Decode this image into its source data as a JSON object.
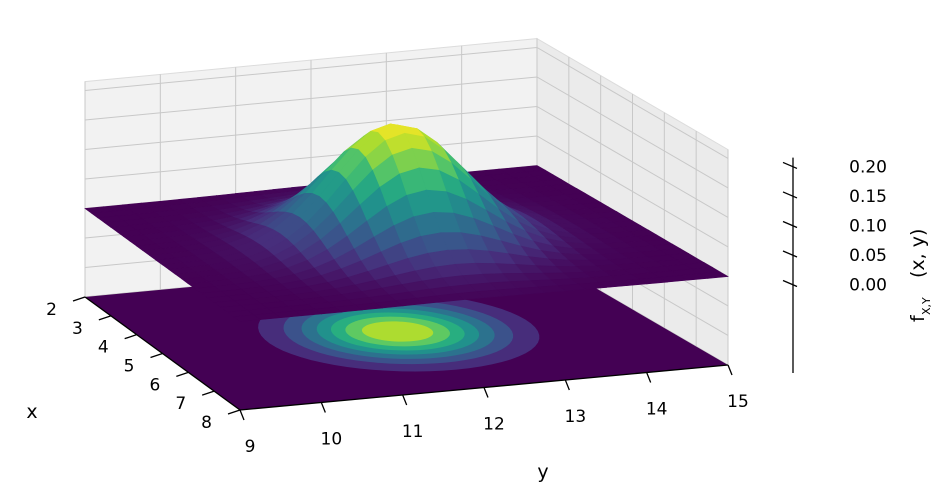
{
  "chart_data": {
    "type": "surface3d",
    "title": "",
    "description": "Bivariate normal probability density surface with filled contour projection on floor",
    "xlabel": "x",
    "ylabel": "y",
    "zlabel_main": "f",
    "zlabel_sub": "X,Y",
    "zlabel_args": "(x, y)",
    "xlim": [
      2,
      8
    ],
    "ylim": [
      9,
      15
    ],
    "zlim": [
      -0.15,
      0.2
    ],
    "x_ticks": [
      "2",
      "3",
      "4",
      "5",
      "6",
      "7",
      "8"
    ],
    "y_ticks": [
      "9",
      "10",
      "11",
      "12",
      "13",
      "14",
      "15"
    ],
    "z_ticks": [
      "0.00",
      "0.05",
      "0.10",
      "0.15",
      "0.20"
    ],
    "distribution": {
      "mean_x": 5,
      "mean_y": 12,
      "std_x": 1,
      "std_y": 0.8,
      "peak_density": 0.2
    },
    "colormap": "viridis",
    "colormap_stops": [
      "#440154",
      "#472d7b",
      "#3b528b",
      "#2c728e",
      "#21918c",
      "#28ae80",
      "#5ec962",
      "#addc30",
      "#fde725"
    ],
    "grid": true,
    "contour_levels": 8,
    "pane_color": "#ffffff",
    "grid_color": "#c8c8c8"
  }
}
